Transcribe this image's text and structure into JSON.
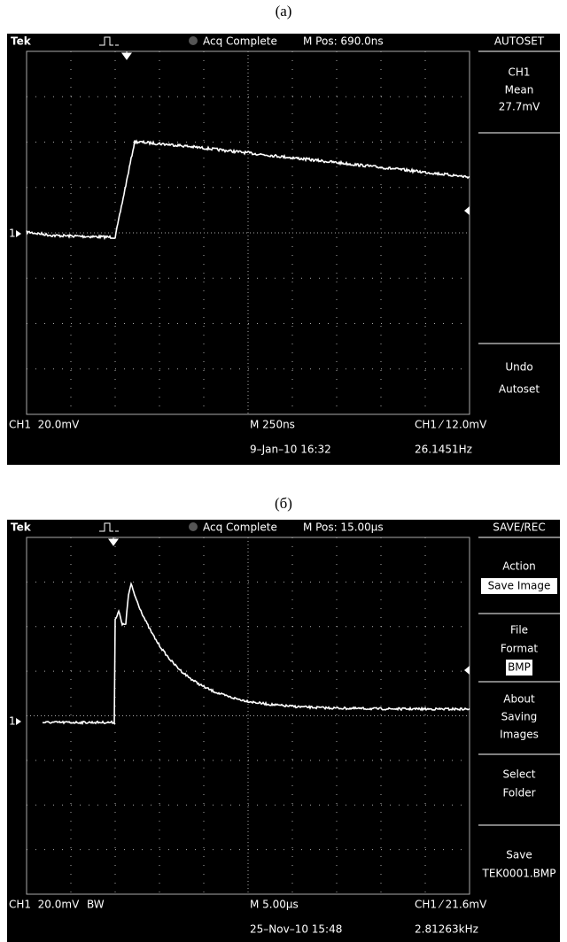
{
  "figures": [
    {
      "caption": "(a)",
      "header": {
        "brand": "Tek",
        "status": "Acq Complete",
        "position": "M Pos: 690.0ns",
        "menu_title": "AUTOSET"
      },
      "ground_marker": "1",
      "menu": [
        {
          "lines": [
            "CH1",
            "Mean",
            "27.7mV"
          ]
        },
        {
          "lines": [
            "Undo",
            "Autoset"
          ]
        }
      ],
      "footer": {
        "channel": "CH1  20.0mV",
        "timebase": "M 250ns",
        "trigger": "CH1 ⁄ 12.0mV",
        "date": "9–Jan–10 16:32",
        "frequency": "26.1451Hz"
      }
    },
    {
      "caption": "(б)",
      "header": {
        "brand": "Tek",
        "status": "Acq Complete",
        "position": "M Pos: 15.00µs",
        "menu_title": "SAVE/REC"
      },
      "ground_marker": "1",
      "menu": [
        {
          "lines": [
            "Action"
          ],
          "selected": "Save Image"
        },
        {
          "lines": [
            "File",
            "Format"
          ],
          "selected": "BMP"
        },
        {
          "lines": [
            "About",
            "Saving",
            "Images"
          ]
        },
        {
          "lines": [
            "Select",
            "Folder"
          ]
        },
        {
          "lines": [
            "Save",
            "TEK0001.BMP"
          ]
        }
      ],
      "footer": {
        "channel": "CH1  20.0mV",
        "bandwidth": "BW",
        "timebase": "M 5.00µs",
        "trigger": "CH1 ⁄ 21.6mV",
        "date": "25–Nov–10 15:48",
        "frequency": "2.81263kHz"
      }
    }
  ]
}
